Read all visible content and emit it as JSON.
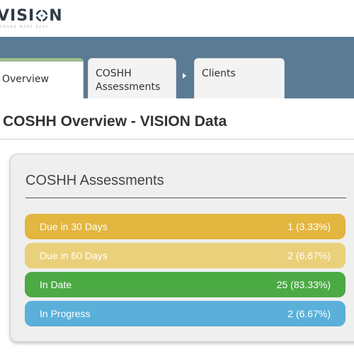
{
  "header": {
    "logo_text_left": "VISI",
    "logo_text_right": "N",
    "logo_tagline": "COSHH MADE EASY"
  },
  "tabs": [
    {
      "label": "Overview",
      "active": true
    },
    {
      "label": "COSHH Assessments",
      "active": false
    },
    {
      "label": "Clients",
      "active": false
    }
  ],
  "page": {
    "title": "COSHH Overview - VISION Data"
  },
  "panel": {
    "title": "COSHH Assessments",
    "stats": [
      {
        "label": "Due in 30 Days",
        "value": "1 (3.33%)",
        "color": "#e2b63f"
      },
      {
        "label": "Due in 60 Days",
        "value": "2 (6.67%)",
        "color": "#ead07b"
      },
      {
        "label": "In Date",
        "value": "25 (83.33%)",
        "color": "#4caa45"
      },
      {
        "label": "In Progress",
        "value": "2 (6.67%)",
        "color": "#5ab0d9"
      }
    ]
  },
  "colors": {
    "tab_bar": "#5b7a93",
    "active_tab_accent": "#9fbe8f"
  }
}
